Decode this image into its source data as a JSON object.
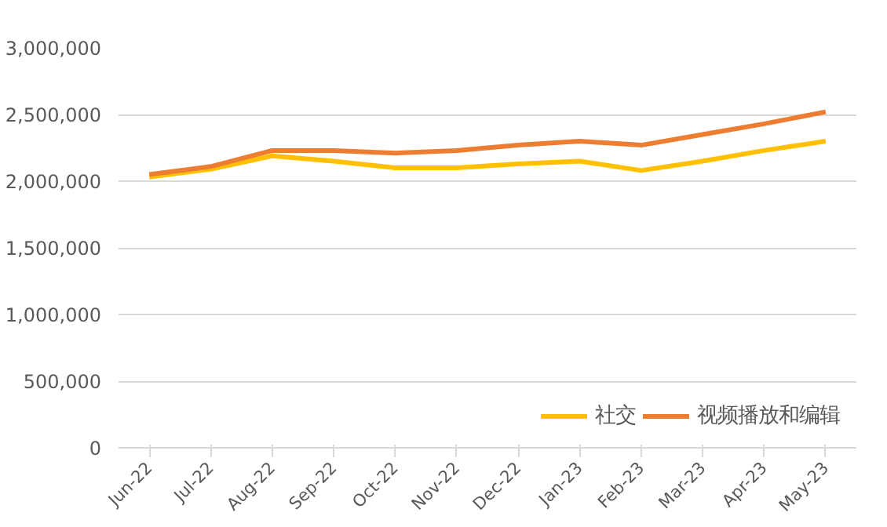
{
  "chart_data": {
    "type": "line",
    "categories": [
      "Jun-22",
      "Jul-22",
      "Aug-22",
      "Sep-22",
      "Oct-22",
      "Nov-22",
      "Dec-22",
      "Jan-23",
      "Feb-23",
      "Mar-23",
      "Apr-23",
      "May-23"
    ],
    "series": [
      {
        "name": "社交",
        "color": "#ffc000",
        "values": [
          2030000,
          2090000,
          2190000,
          2150000,
          2100000,
          2100000,
          2130000,
          2150000,
          2080000,
          2150000,
          2230000,
          2300000
        ]
      },
      {
        "name": "视频播放和编辑",
        "color": "#ed7d31",
        "values": [
          2050000,
          2110000,
          2230000,
          2230000,
          2210000,
          2230000,
          2270000,
          2300000,
          2270000,
          2350000,
          2430000,
          2520000
        ]
      }
    ],
    "ylim": [
      0,
      3000000
    ],
    "yticks": [
      {
        "value": 0,
        "label": "0"
      },
      {
        "value": 500000,
        "label": "500,000"
      },
      {
        "value": 1000000,
        "label": "1,000,000"
      },
      {
        "value": 1500000,
        "label": "1,500,000"
      },
      {
        "value": 2000000,
        "label": "2,000,000"
      },
      {
        "value": 2500000,
        "label": "2,500,000"
      },
      {
        "value": 3000000,
        "label": "3,000,000"
      }
    ],
    "grid": "y",
    "legend": "bottom right",
    "marker": "none",
    "line_style": "solid"
  }
}
